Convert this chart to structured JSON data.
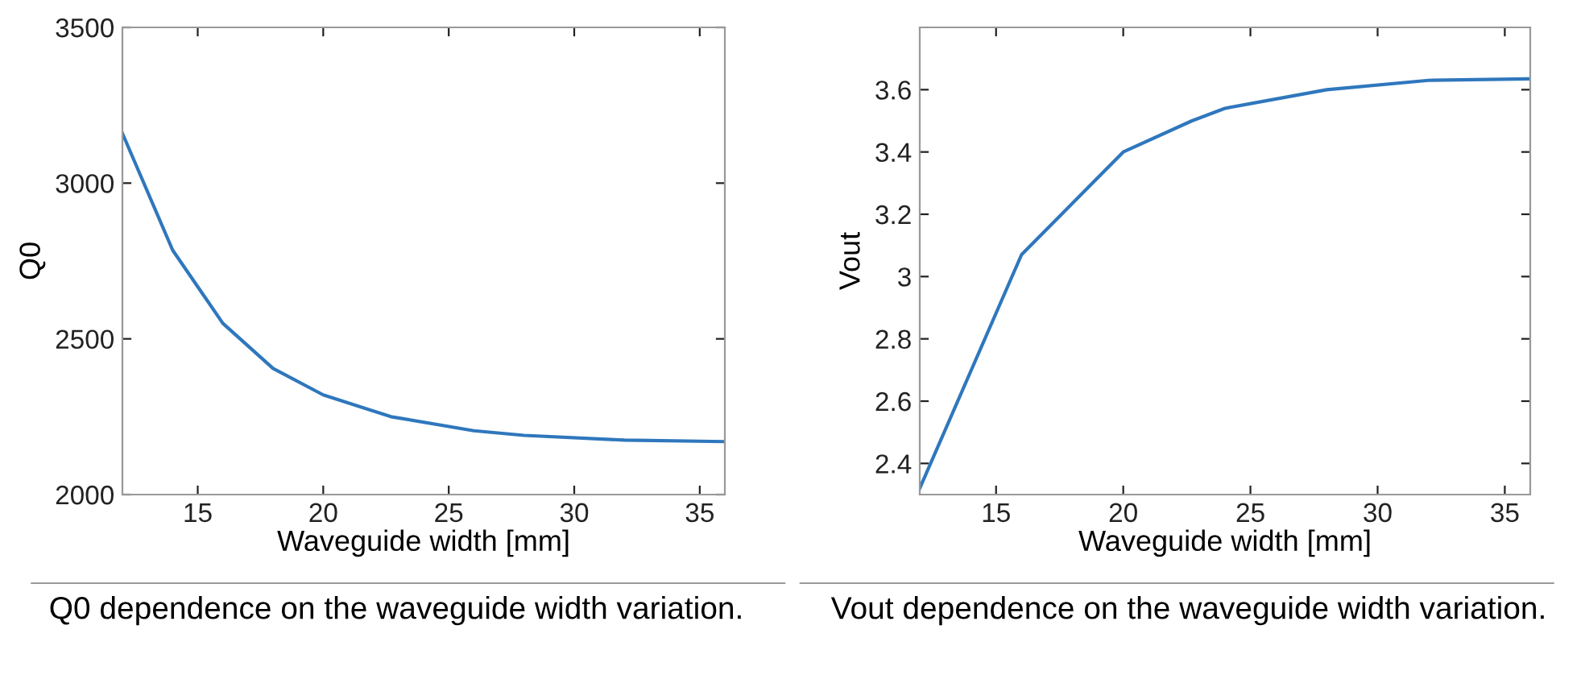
{
  "chart_data": [
    {
      "type": "line",
      "xlabel": "Waveguide width [mm]",
      "ylabel": "Q0",
      "x": [
        12,
        14,
        16,
        18,
        20,
        22.7,
        26,
        28,
        32,
        36
      ],
      "series": [
        {
          "color": "#2f77bd",
          "values": [
            3160,
            2785,
            2550,
            2405,
            2320,
            2250,
            2205,
            2190,
            2175,
            2170
          ]
        }
      ],
      "xlim": [
        12,
        36
      ],
      "xticks": [
        15,
        20,
        25,
        30,
        35
      ],
      "ylim": [
        2000,
        3500
      ],
      "yticks": [
        2000,
        2500,
        3000,
        3500
      ],
      "grid": false,
      "legend": false,
      "annotations": [
        "Q0 dependence on the waveguide width variation."
      ]
    },
    {
      "type": "line",
      "xlabel": "Waveguide width [mm]",
      "ylabel": "Vout",
      "x": [
        12,
        16,
        20,
        22.7,
        24,
        28,
        32,
        36
      ],
      "series": [
        {
          "color": "#2f77bd",
          "values": [
            2.32,
            3.07,
            3.4,
            3.5,
            3.54,
            3.6,
            3.63,
            3.635
          ]
        }
      ],
      "xlim": [
        12,
        36
      ],
      "xticks": [
        15,
        20,
        25,
        30,
        35
      ],
      "ylim": [
        2.3,
        3.8
      ],
      "yticks": [
        {
          "value": 2.4,
          "label": "2.4"
        },
        {
          "value": 2.6,
          "label": "2.6"
        },
        {
          "value": 2.8,
          "label": "2.8"
        },
        3,
        {
          "value": 3.2,
          "label": "3.2"
        },
        {
          "value": 3.4,
          "label": "3.4"
        },
        {
          "value": 3.6,
          "label": "3.6"
        }
      ],
      "grid": false,
      "legend": false,
      "annotations": [
        "Vout dependence on the waveguide width variation."
      ]
    }
  ]
}
